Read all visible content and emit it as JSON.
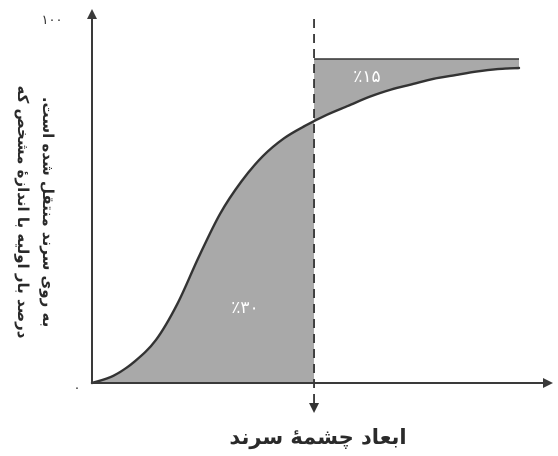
{
  "chart_data": {
    "type": "area",
    "xlabel": "ابعاد چشمهٔ سرند",
    "ylabel": [
      "درصد بار اولیه با اندازهٔ مشخص که",
      "به روی سرند منتقل شده است."
    ],
    "y_ticks": [
      "۱۰۰",
      "۰"
    ],
    "ylim": [
      0,
      100
    ],
    "xlim": [
      0,
      100
    ],
    "cut_x": 52,
    "curve": {
      "x": [
        0,
        5,
        10,
        15,
        20,
        25,
        30,
        35,
        40,
        45,
        50,
        55,
        60,
        65,
        70,
        75,
        80,
        85,
        90,
        95,
        100
      ],
      "y": [
        0,
        2,
        6,
        12,
        22,
        35,
        47,
        56,
        63,
        68,
        71.5,
        74.5,
        77,
        79.5,
        81.5,
        83,
        84.5,
        85.5,
        86.5,
        87.2,
        87.5
      ]
    },
    "ceiling_y": 90,
    "annotations": [
      {
        "label": "٪۳۰",
        "region": "below-curve-left-of-cut"
      },
      {
        "label": "٪۱۵",
        "region": "above-curve-right-of-cut"
      }
    ],
    "colors": {
      "fill": "#a9a9a9",
      "fill_dark": "#7d7d7d",
      "line": "#333333",
      "axis": "#3a3a3a"
    }
  }
}
